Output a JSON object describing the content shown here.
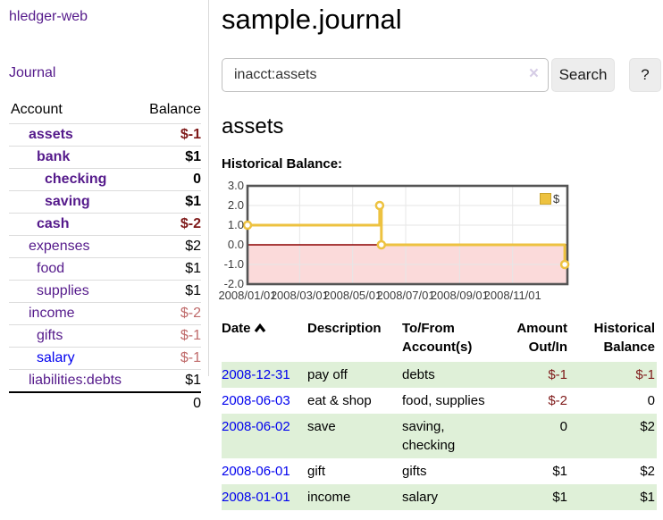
{
  "colors": {
    "purple_link": "#551a8b",
    "blue_link": "#0000ee",
    "negative_strong": "#7f1a1a",
    "negative_soft": "#bf6a6a",
    "row_stripe_green": "#dff0d8",
    "chart_line_gold": "#edc240",
    "chart_negative_fill": "#fbdada",
    "chart_zero_line": "#8b0000",
    "chart_grid": "#e6e6e6",
    "chart_border": "#545454"
  },
  "app_title": "hledger-web",
  "sidebar": {
    "journal_link": "Journal",
    "account_table": {
      "headers": [
        "Account",
        "Balance"
      ],
      "rows": [
        {
          "account": "assets",
          "depth": 1,
          "bold": true,
          "balance": "$-1",
          "balance_color": "neg-strong",
          "link_color": "purple"
        },
        {
          "account": "bank",
          "depth": 2,
          "bold": true,
          "balance": "$1",
          "balance_color": "normal",
          "link_color": "purple"
        },
        {
          "account": "checking",
          "depth": 3,
          "bold": true,
          "balance": "0",
          "balance_color": "normal",
          "link_color": "purple"
        },
        {
          "account": "saving",
          "depth": 3,
          "bold": true,
          "balance": "$1",
          "balance_color": "normal",
          "link_color": "purple"
        },
        {
          "account": "cash",
          "depth": 2,
          "bold": true,
          "balance": "$-2",
          "balance_color": "neg-strong",
          "link_color": "purple"
        },
        {
          "account": "expenses",
          "depth": 1,
          "bold": false,
          "balance": "$2",
          "balance_color": "normal",
          "link_color": "purple"
        },
        {
          "account": "food",
          "depth": 2,
          "bold": false,
          "balance": "$1",
          "balance_color": "normal",
          "link_color": "purple"
        },
        {
          "account": "supplies",
          "depth": 2,
          "bold": false,
          "balance": "$1",
          "balance_color": "normal",
          "link_color": "purple"
        },
        {
          "account": "income",
          "depth": 1,
          "bold": false,
          "balance": "$-2",
          "balance_color": "neg-soft",
          "link_color": "purple"
        },
        {
          "account": "gifts",
          "depth": 2,
          "bold": false,
          "balance": "$-1",
          "balance_color": "neg-soft",
          "link_color": "purple"
        },
        {
          "account": "salary",
          "depth": 2,
          "bold": false,
          "balance": "$-1",
          "balance_color": "neg-soft",
          "link_color": "blue"
        },
        {
          "account": "liabilities:debts",
          "depth": 1,
          "bold": false,
          "balance": "$1",
          "balance_color": "normal",
          "link_color": "purple"
        }
      ],
      "total": "0"
    }
  },
  "header": {
    "title": "sample.journal"
  },
  "search": {
    "value": "inacct:assets",
    "clear_icon": "×",
    "search_button": "Search",
    "help_button": "?"
  },
  "account_page": {
    "heading": "assets",
    "chart_title": "Historical Balance:"
  },
  "chart_data": {
    "type": "line",
    "title": "Historical Balance:",
    "series": [
      {
        "name": "$",
        "color": "#edc240",
        "steps": true,
        "points": [
          {
            "date": "2008-01-01",
            "value": 1
          },
          {
            "date": "2008-06-01",
            "value": 2
          },
          {
            "date": "2008-06-03",
            "value": 0
          },
          {
            "date": "2008-12-31",
            "value": -1
          }
        ]
      }
    ],
    "x_tick_labels": [
      "2008/01/01",
      "2008/03/01",
      "2008/05/01",
      "2008/07/01",
      "2008/09/01",
      "2008/11/01"
    ],
    "y_tick_labels": [
      "3.0",
      "2.0",
      "1.0",
      "0.0",
      "-1.0",
      "-2.0"
    ],
    "ylim": [
      -2,
      3
    ],
    "x_range_days": [
      0,
      368
    ],
    "x_epoch": "2008-01-01",
    "legend": {
      "label": "$",
      "position": "top-right"
    },
    "negative_region_below_zero": true,
    "grid": true
  },
  "register": {
    "headers": [
      {
        "label": "Date",
        "sortable": true,
        "sort": "asc"
      },
      {
        "label": "Description"
      },
      {
        "label": "To/From Account(s)"
      },
      {
        "label": "Amount Out/In",
        "align": "right"
      },
      {
        "label": "Historical Balance",
        "align": "right"
      }
    ],
    "rows": [
      {
        "date": "2008-12-31",
        "description": "pay off",
        "accounts": "debts",
        "amount": "$-1",
        "amount_color": "neg",
        "balance": "$-1",
        "balance_color": "neg"
      },
      {
        "date": "2008-06-03",
        "description": "eat & shop",
        "accounts": "food, supplies",
        "amount": "$-2",
        "amount_color": "neg",
        "balance": "0",
        "balance_color": "normal"
      },
      {
        "date": "2008-06-02",
        "description": "save",
        "accounts": "saving, checking",
        "amount": "0",
        "amount_color": "normal",
        "balance": "$2",
        "balance_color": "normal"
      },
      {
        "date": "2008-06-01",
        "description": "gift",
        "accounts": "gifts",
        "amount": "$1",
        "amount_color": "normal",
        "balance": "$2",
        "balance_color": "normal"
      },
      {
        "date": "2008-01-01",
        "description": "income",
        "accounts": "salary",
        "amount": "$1",
        "amount_color": "normal",
        "balance": "$1",
        "balance_color": "normal"
      }
    ]
  }
}
